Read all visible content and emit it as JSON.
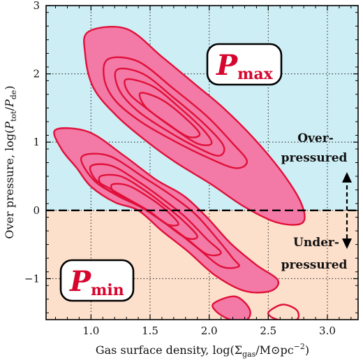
{
  "chart_data": {
    "type": "contour",
    "xlabel": "Gas surface density, log(Σgas/M⊙pc−2)",
    "ylabel": "Over pressure, log(Ptot/Pde)",
    "xlim": [
      0.62,
      3.26
    ],
    "ylim": [
      -1.6,
      3.0
    ],
    "xticks": [
      "1.0",
      "1.5",
      "2.0",
      "2.5",
      "3.0"
    ],
    "yticks": [
      "−1",
      "0",
      "1",
      "2",
      "3"
    ],
    "xtick_values": [
      1.0,
      1.5,
      2.0,
      2.5,
      3.0
    ],
    "ytick_values": [
      -1,
      0,
      1,
      2,
      3
    ],
    "grid": true,
    "reference_line_y": 0,
    "regions": [
      {
        "name": "over",
        "y_range": [
          0,
          3.0
        ],
        "color": "#cdeef5"
      },
      {
        "name": "under",
        "y_range": [
          -1.6,
          0
        ],
        "color": "#fde0cb"
      }
    ],
    "series": [
      {
        "name": "Pmax",
        "fill_color": "#f37aa6",
        "line_color": "#e0103a",
        "levels": [
          [
            [
              0.98,
              2.62
            ],
            [
              1.3,
              2.66
            ],
            [
              1.6,
              2.25
            ],
            [
              1.9,
              1.82
            ],
            [
              2.12,
              1.5
            ],
            [
              2.38,
              1.05
            ],
            [
              2.62,
              0.55
            ],
            [
              2.78,
              0.1
            ],
            [
              2.79,
              -0.18
            ],
            [
              2.58,
              -0.18
            ],
            [
              2.3,
              0.05
            ],
            [
              2.02,
              0.38
            ],
            [
              1.72,
              0.7
            ],
            [
              1.48,
              1.0
            ],
            [
              1.22,
              1.38
            ],
            [
              1.02,
              1.8
            ],
            [
              0.95,
              2.3
            ]
          ],
          [
            [
              1.15,
              2.22
            ],
            [
              1.4,
              2.18
            ],
            [
              1.7,
              1.78
            ],
            [
              1.98,
              1.38
            ],
            [
              2.2,
              0.98
            ],
            [
              2.32,
              0.72
            ],
            [
              2.22,
              0.62
            ],
            [
              1.98,
              0.78
            ],
            [
              1.7,
              1.02
            ],
            [
              1.42,
              1.3
            ],
            [
              1.2,
              1.62
            ],
            [
              1.11,
              1.95
            ]
          ],
          [
            [
              1.22,
              2.06
            ],
            [
              1.44,
              2.0
            ],
            [
              1.7,
              1.65
            ],
            [
              1.95,
              1.28
            ],
            [
              2.12,
              0.95
            ],
            [
              2.08,
              0.8
            ],
            [
              1.9,
              0.92
            ],
            [
              1.66,
              1.15
            ],
            [
              1.4,
              1.45
            ],
            [
              1.24,
              1.76
            ]
          ],
          [
            [
              1.3,
              1.92
            ],
            [
              1.52,
              1.82
            ],
            [
              1.74,
              1.52
            ],
            [
              1.95,
              1.18
            ],
            [
              2.02,
              0.98
            ],
            [
              1.9,
              0.98
            ],
            [
              1.7,
              1.2
            ],
            [
              1.48,
              1.48
            ],
            [
              1.32,
              1.72
            ]
          ],
          [
            [
              1.42,
              1.72
            ],
            [
              1.6,
              1.62
            ],
            [
              1.8,
              1.35
            ],
            [
              1.92,
              1.12
            ],
            [
              1.82,
              1.08
            ],
            [
              1.64,
              1.28
            ],
            [
              1.46,
              1.52
            ]
          ]
        ]
      },
      {
        "name": "Pmin",
        "fill_color": "#f37aa6",
        "line_color": "#e0103a",
        "levels": [
          [
            [
              0.7,
              1.18
            ],
            [
              0.98,
              1.15
            ],
            [
              1.28,
              0.8
            ],
            [
              1.55,
              0.45
            ],
            [
              1.78,
              0.22
            ],
            [
              1.98,
              -0.1
            ],
            [
              2.18,
              -0.48
            ],
            [
              2.4,
              -0.8
            ],
            [
              2.58,
              -1.02
            ],
            [
              2.52,
              -1.18
            ],
            [
              2.3,
              -1.18
            ],
            [
              2.05,
              -0.95
            ],
            [
              1.82,
              -0.6
            ],
            [
              1.6,
              -0.3
            ],
            [
              1.4,
              0.0
            ],
            [
              1.2,
              0.12
            ],
            [
              1.0,
              0.35
            ],
            [
              0.88,
              0.62
            ],
            [
              0.75,
              0.9
            ]
          ],
          [
            [
              0.92,
              0.78
            ],
            [
              1.15,
              0.8
            ],
            [
              1.45,
              0.48
            ],
            [
              1.68,
              0.22
            ],
            [
              1.88,
              -0.05
            ],
            [
              2.05,
              -0.38
            ],
            [
              2.2,
              -0.7
            ],
            [
              2.25,
              -0.82
            ],
            [
              2.1,
              -0.82
            ],
            [
              1.9,
              -0.55
            ],
            [
              1.68,
              -0.25
            ],
            [
              1.45,
              0.02
            ],
            [
              1.22,
              0.22
            ],
            [
              1.02,
              0.45
            ]
          ],
          [
            [
              1.0,
              0.65
            ],
            [
              1.18,
              0.65
            ],
            [
              1.42,
              0.4
            ],
            [
              1.62,
              0.15
            ],
            [
              1.8,
              -0.1
            ],
            [
              1.98,
              -0.42
            ],
            [
              2.1,
              -0.62
            ],
            [
              1.98,
              -0.64
            ],
            [
              1.8,
              -0.4
            ],
            [
              1.6,
              -0.15
            ],
            [
              1.4,
              0.08
            ],
            [
              1.18,
              0.3
            ],
            [
              1.04,
              0.45
            ]
          ],
          [
            [
              1.08,
              0.5
            ],
            [
              1.25,
              0.5
            ],
            [
              1.45,
              0.3
            ],
            [
              1.62,
              0.08
            ],
            [
              1.78,
              -0.15
            ],
            [
              1.9,
              -0.38
            ],
            [
              1.8,
              -0.4
            ],
            [
              1.62,
              -0.18
            ],
            [
              1.45,
              0.02
            ],
            [
              1.26,
              0.2
            ],
            [
              1.1,
              0.35
            ]
          ],
          [
            [
              1.18,
              0.38
            ],
            [
              1.32,
              0.36
            ],
            [
              1.5,
              0.18
            ],
            [
              1.65,
              -0.02
            ],
            [
              1.74,
              -0.2
            ],
            [
              1.64,
              -0.2
            ],
            [
              1.5,
              -0.02
            ],
            [
              1.34,
              0.14
            ],
            [
              1.2,
              0.26
            ]
          ]
        ]
      },
      {
        "name": "Pmin-tail",
        "fill_color": "#f37aa6",
        "line_color": "#e0103a",
        "levels": [
          [
            [
              2.04,
              -1.36
            ],
            [
              2.22,
              -1.26
            ],
            [
              2.34,
              -1.44
            ],
            [
              2.32,
              -1.6
            ],
            [
              2.18,
              -1.6
            ],
            [
              2.06,
              -1.48
            ]
          ],
          [
            [
              2.5,
              -1.5
            ],
            [
              2.62,
              -1.38
            ],
            [
              2.74,
              -1.46
            ],
            [
              2.74,
              -1.6
            ],
            [
              2.58,
              -1.6
            ]
          ]
        ]
      }
    ]
  },
  "labels": {
    "pmax_main": "P",
    "pmax_sub": "max",
    "pmin_main": "P",
    "pmin_sub": "min",
    "over_line1": "Over-",
    "over_line2": "pressured",
    "under_line1": "Under-",
    "under_line2": "pressured"
  },
  "colors": {
    "frame": "#000000",
    "grid": "#333333",
    "label_box_stroke": "#000000",
    "label_box_fill": "#ffffff",
    "label_text": "#d6062f"
  }
}
